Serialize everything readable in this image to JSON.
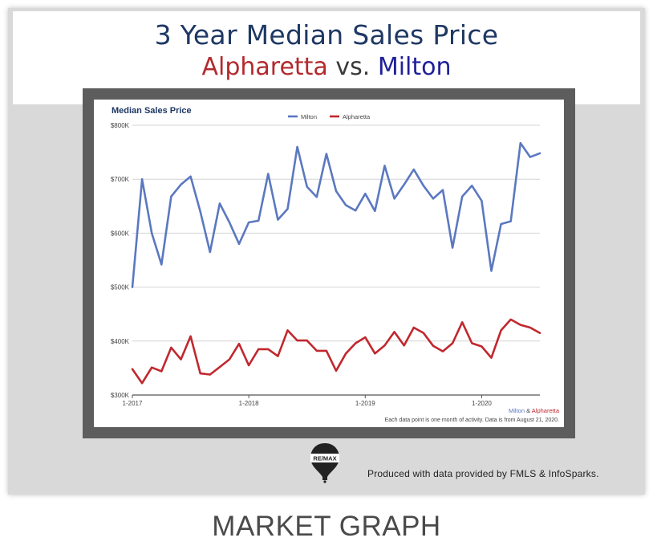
{
  "header": {
    "title": "3 Year Median Sales Price",
    "subtitle_a": "Alpharetta",
    "subtitle_vs": "vs.",
    "subtitle_b": "Milton"
  },
  "footer": {
    "label": "MARKET GRAPH",
    "credit": "Produced with data provided by FMLS & InfoSparks.",
    "logo_text": "RE/MAX"
  },
  "colors": {
    "milton": "#5b78c0",
    "alpharetta": "#c0282e",
    "title_blue": "#1f3864"
  },
  "chart_data": {
    "type": "line",
    "title": "Median Sales Price",
    "xlabel": "",
    "ylabel": "",
    "ylim": [
      300000,
      800000
    ],
    "yticks": [
      {
        "value": 300000,
        "label": "$300K"
      },
      {
        "value": 400000,
        "label": "$400K"
      },
      {
        "value": 500000,
        "label": "$500K"
      },
      {
        "value": 600000,
        "label": "$600K"
      },
      {
        "value": 700000,
        "label": "$700K"
      },
      {
        "value": 800000,
        "label": "$800K"
      }
    ],
    "xticks": [
      {
        "index": 0,
        "label": "1-2017"
      },
      {
        "index": 12,
        "label": "1-2018"
      },
      {
        "index": 24,
        "label": "1-2019"
      },
      {
        "index": 36,
        "label": "1-2020"
      }
    ],
    "grid": true,
    "legend_position": "top-center",
    "series": [
      {
        "name": "Milton",
        "color": "#5b78c0",
        "values": [
          500000,
          700000,
          600000,
          542000,
          668000,
          690000,
          705000,
          640000,
          565000,
          655000,
          620000,
          580000,
          620000,
          623000,
          710000,
          625000,
          645000,
          760000,
          686000,
          667000,
          747000,
          678000,
          652000,
          642000,
          673000,
          641000,
          725000,
          664000,
          690000,
          718000,
          688000,
          664000,
          680000,
          573000,
          668000,
          688000,
          660000,
          530000,
          617000,
          622000,
          767000,
          741000,
          748000
        ]
      },
      {
        "name": "Alpharetta",
        "color": "#c0282e",
        "values": [
          348000,
          322000,
          351000,
          344000,
          388000,
          366000,
          409000,
          340000,
          338000,
          352000,
          366000,
          395000,
          355000,
          385000,
          385000,
          372000,
          420000,
          401000,
          401000,
          382000,
          382000,
          345000,
          377000,
          396000,
          407000,
          377000,
          392000,
          417000,
          392000,
          425000,
          415000,
          391000,
          381000,
          396000,
          435000,
          396000,
          390000,
          369000,
          420000,
          440000,
          430000,
          425000,
          415000
        ]
      }
    ],
    "annotations": {
      "source_prefix": "Milton",
      "source_amp": " & ",
      "source_suffix": "Alpharetta",
      "note": "Each data point is one month of activity. Data is from August 21, 2020."
    }
  }
}
